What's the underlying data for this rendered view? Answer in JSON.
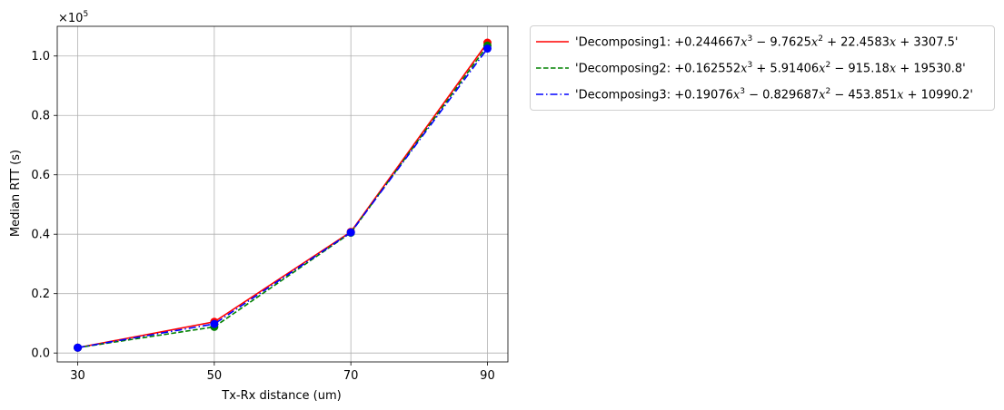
{
  "chart_data": {
    "type": "line",
    "title": "",
    "xlabel": "Tx-Rx distance (um)",
    "ylabel": "Median RTT (s)",
    "y_scale_label": "×10",
    "y_scale_exp": "5",
    "y_multiplier": 100000,
    "x_ticks": [
      30,
      50,
      70,
      90
    ],
    "x_tick_labels": [
      "30",
      "50",
      "70",
      "90"
    ],
    "y_ticks": [
      0.0,
      0.2,
      0.4,
      0.6,
      0.8,
      1.0
    ],
    "y_tick_labels": [
      "0.0",
      "0.2",
      "0.4",
      "0.6",
      "0.8",
      "1.0"
    ],
    "xlim": [
      27,
      93
    ],
    "ylim": [
      -0.03,
      1.1
    ],
    "grid": true,
    "legend_position": "outside-right-top",
    "x": [
      30,
      50,
      70,
      90
    ],
    "series": [
      {
        "name": "'Decomposing1: +0.244667x^3 − 9.7625x^2 + 22.4583x + 3307.5'",
        "legend_parts": [
          "'Decomposing1: +0.244667",
          "x",
          "3",
          " − 9.7625",
          "x",
          "2",
          " + 22.4583",
          "x",
          " + 3307.5'"
        ],
        "color": "#ff0000",
        "dash": "solid",
        "points": [
          0.018,
          0.105,
          0.408,
          1.045
        ],
        "fit_coeffs": [
          0.244667,
          -9.7625,
          22.4583,
          3307.5
        ]
      },
      {
        "name": "'Decomposing2: +0.162552x^3 + 5.91406x^2 − 915.18x + 19530.8'",
        "legend_parts": [
          "'Decomposing2: +0.162552",
          "x",
          "3",
          " + 5.91406",
          "x",
          "2",
          " − 915.18",
          "x",
          " + 19530.8'"
        ],
        "color": "#008000",
        "dash": "dashed",
        "points": [
          0.018,
          0.088,
          0.405,
          1.035
        ],
        "fit_coeffs": [
          0.162552,
          5.91406,
          -915.18,
          19530.8
        ]
      },
      {
        "name": "'Decomposing3: +0.19076x^3 − 0.829687x^2 − 453.851x + 10990.2'",
        "legend_parts": [
          "'Decomposing3: +0.19076",
          "x",
          "3",
          " − 0.829687",
          "x",
          "2",
          " − 453.851",
          "x",
          " + 10990.2'"
        ],
        "color": "#0000ff",
        "dash": "dashdot",
        "points": [
          0.018,
          0.098,
          0.406,
          1.025
        ],
        "fit_coeffs": [
          0.19076,
          -0.829687,
          -453.851,
          10990.2
        ]
      }
    ]
  }
}
